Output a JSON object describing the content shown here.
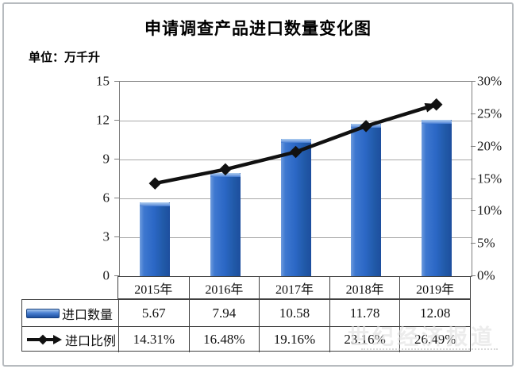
{
  "header": {
    "title": "申请调查产品进口数量变化图",
    "unit_label": "单位：万千升"
  },
  "chart_data": {
    "type": "combo-bar-line",
    "title": "申请调查产品进口数量变化图",
    "categories": [
      "2015年",
      "2016年",
      "2017年",
      "2018年",
      "2019年"
    ],
    "series": [
      {
        "name": "进口数量",
        "type": "bar",
        "axis": "left",
        "values": [
          5.67,
          7.94,
          10.58,
          11.78,
          12.08
        ]
      },
      {
        "name": "进口比例",
        "type": "line",
        "axis": "right",
        "unit": "%",
        "values": [
          14.31,
          16.48,
          19.16,
          23.16,
          26.49
        ]
      }
    ],
    "left_axis": {
      "min": 0,
      "max": 15,
      "ticks": [
        "15",
        "12",
        "9",
        "6",
        "3",
        "0"
      ],
      "unit": "万千升"
    },
    "right_axis": {
      "min": 0,
      "max": 30,
      "ticks": [
        "30%",
        "25%",
        "20%",
        "15%",
        "10%",
        "5%",
        "0%"
      ]
    },
    "grid": true,
    "legend_position": "table-left",
    "line_end_style": "arrow"
  },
  "table": {
    "columns": [
      "2015年",
      "2016年",
      "2017年",
      "2018年",
      "2019年"
    ],
    "rows": [
      {
        "label": "进口数量",
        "icon": "bar-swatch-icon",
        "values": [
          "5.67",
          "7.94",
          "10.58",
          "11.78",
          "12.08"
        ]
      },
      {
        "label": "进口比例",
        "icon": "line-arrow-icon",
        "values": [
          "14.31%",
          "16.48%",
          "19.16%",
          "23.16%",
          "26.49%"
        ]
      }
    ]
  },
  "watermark": {
    "text": "世纪经济报道"
  },
  "colors": {
    "bar_main": "#2b67c5",
    "bar_light": "#7fa9e2",
    "bar_dark": "#1d4e9e",
    "line": "#111111",
    "grid": "#a8a8a8",
    "plot_border": "#7f7f7f",
    "table_border": "#404040"
  }
}
